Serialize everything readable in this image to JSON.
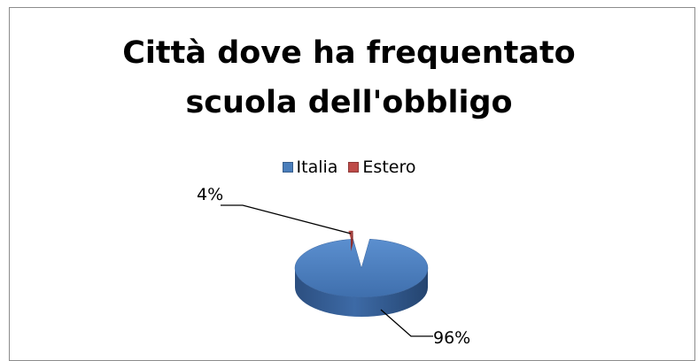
{
  "chart_data": {
    "type": "pie",
    "title_lines": [
      "Città dove ha frequentato",
      "scuola dell'obbligo"
    ],
    "categories": [
      "Italia",
      "Estero"
    ],
    "values": [
      96,
      4
    ],
    "data_labels": [
      "96%",
      "4%"
    ],
    "colors": [
      "#4a7ebb",
      "#be4b48"
    ],
    "legend_position": "top",
    "style": "3d-pie-exploded"
  }
}
